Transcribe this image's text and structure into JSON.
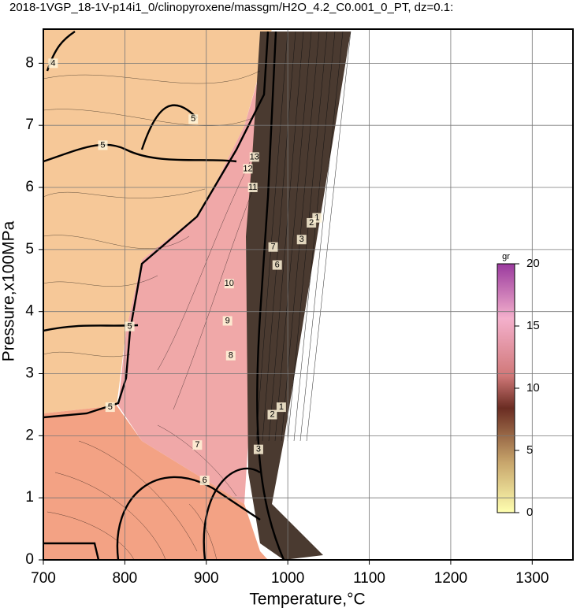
{
  "chart_data": {
    "type": "contour",
    "title": "2018-1VGP_18-1V-p14i1_0/clinopyroxene/massgm/H2O_4.2_C0.001_0_PT, dz=0.1:",
    "x_label": "Temperature,°C",
    "y_label": "Pressure,x100MPa",
    "xlim": [
      700,
      1350
    ],
    "ylim": [
      0,
      8.55
    ],
    "xticks": [
      700,
      800,
      900,
      1000,
      1100,
      1200,
      1300
    ],
    "yticks": [
      0,
      1,
      2,
      3,
      4,
      5,
      6,
      7,
      8
    ],
    "grid": true,
    "colorbar": {
      "label": "gr",
      "lim": [
        0,
        20
      ],
      "ticks": [
        0,
        5,
        10,
        15,
        20
      ]
    },
    "contour_labels": {
      "x": [
        712,
        773,
        884,
        928,
        926,
        930,
        889,
        898,
        806,
        782,
        957,
        951,
        959,
        981,
        992,
        964,
        1036,
        1029,
        1017,
        987,
        982
      ],
      "y": [
        8.0,
        6.68,
        7.1,
        4.45,
        3.85,
        3.29,
        1.85,
        1.28,
        3.76,
        2.46,
        6.0,
        6.3,
        6.49,
        2.34,
        2.46,
        1.78,
        5.51,
        5.43,
        5.16,
        4.75,
        5.04
      ],
      "values": [
        4,
        5,
        5,
        10,
        9,
        8,
        7,
        6,
        5,
        5,
        11,
        12,
        13,
        2,
        1,
        3,
        1,
        2,
        3,
        6,
        7
      ]
    }
  }
}
